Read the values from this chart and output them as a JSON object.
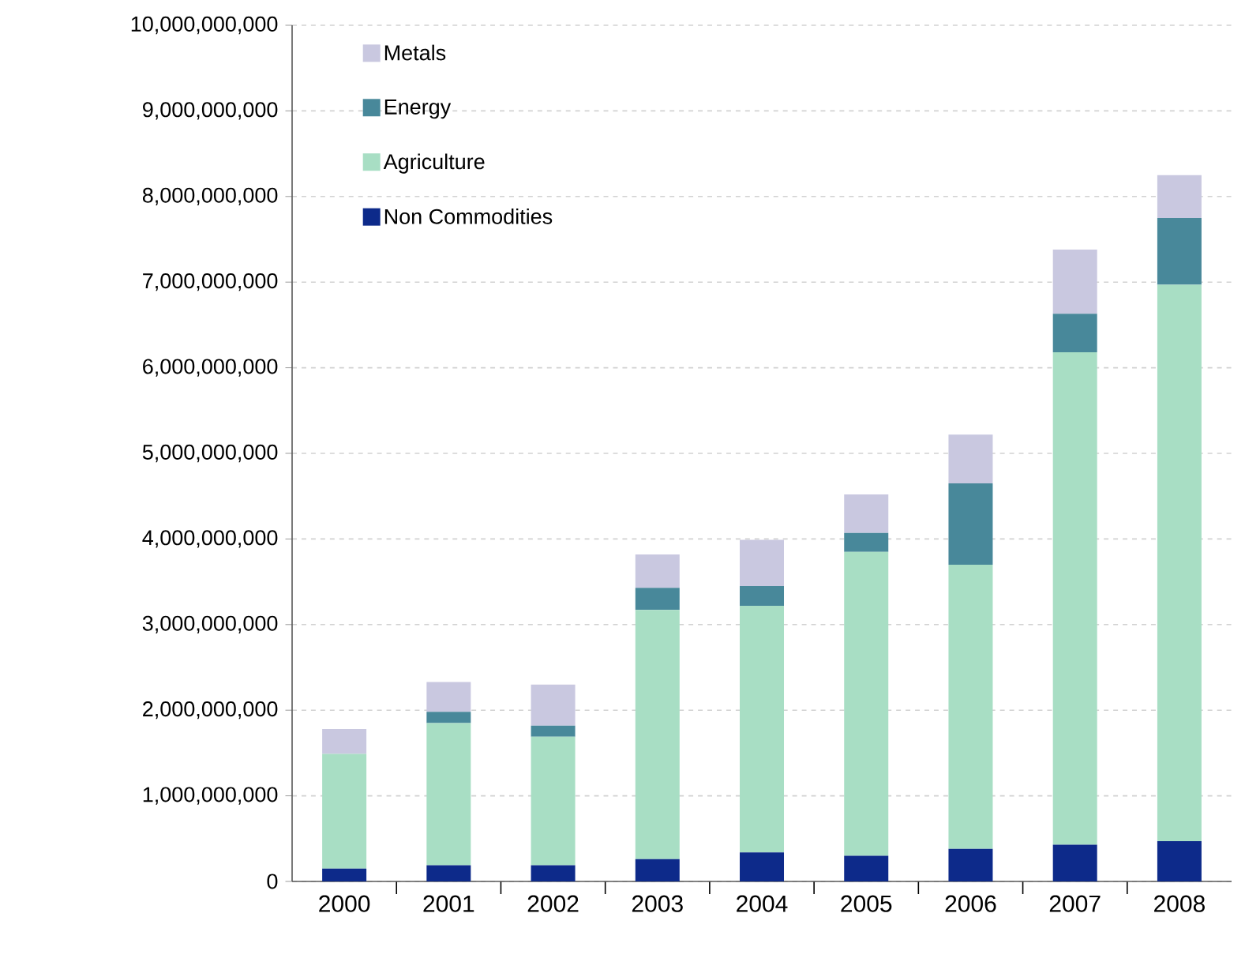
{
  "chart_data": {
    "type": "bar",
    "stacked": true,
    "categories": [
      "2000",
      "2001",
      "2002",
      "2003",
      "2004",
      "2005",
      "2006",
      "2007",
      "2008"
    ],
    "series": [
      {
        "name": "Non Commodities",
        "color": "#0d2a8a",
        "values": [
          150000000,
          190000000,
          190000000,
          260000000,
          340000000,
          300000000,
          380000000,
          430000000,
          470000000
        ]
      },
      {
        "name": "Agriculture",
        "color": "#a8dec4",
        "values": [
          1340000000,
          1660000000,
          1500000000,
          2910000000,
          2880000000,
          3550000000,
          3320000000,
          5750000000,
          6500000000
        ]
      },
      {
        "name": "Energy",
        "color": "#48889a",
        "values": [
          0,
          130000000,
          130000000,
          260000000,
          230000000,
          220000000,
          950000000,
          450000000,
          780000000
        ]
      },
      {
        "name": "Metals",
        "color": "#c9c8e0",
        "values": [
          290000000,
          350000000,
          480000000,
          390000000,
          540000000,
          450000000,
          570000000,
          750000000,
          500000000
        ]
      }
    ],
    "ylim": [
      0,
      10000000000
    ],
    "yticks": [
      {
        "value": 0,
        "label": "0"
      },
      {
        "value": 1000000000,
        "label": "1,000,000,000"
      },
      {
        "value": 2000000000,
        "label": "2,000,000,000"
      },
      {
        "value": 3000000000,
        "label": "3,000,000,000"
      },
      {
        "value": 4000000000,
        "label": "4,000,000,000"
      },
      {
        "value": 5000000000,
        "label": "5,000,000,000"
      },
      {
        "value": 6000000000,
        "label": "6,000,000,000"
      },
      {
        "value": 7000000000,
        "label": "7,000,000,000"
      },
      {
        "value": 8000000000,
        "label": "8,000,000,000"
      },
      {
        "value": 9000000000,
        "label": "9,000,000,000"
      },
      {
        "value": 10000000000,
        "label": "10,000,000,000"
      }
    ],
    "grid": "y",
    "legend": "top left"
  }
}
